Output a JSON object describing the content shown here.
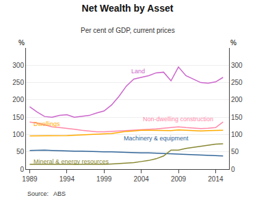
{
  "chart_data": {
    "type": "line",
    "title": "Net Wealth by Asset",
    "subtitle": "Per cent of GDP, current prices",
    "source": "Source:   ABS",
    "ylabel": "%",
    "y2label": "%",
    "x": [
      1989,
      1990,
      1991,
      1992,
      1993,
      1994,
      1995,
      1996,
      1997,
      1998,
      1999,
      2000,
      2001,
      2002,
      2003,
      2004,
      2005,
      2006,
      2007,
      2008,
      2009,
      2010,
      2011,
      2012,
      2013,
      2014,
      2015
    ],
    "series": [
      {
        "name": "Land",
        "color": "#cc66cc",
        "values": [
          180,
          165,
          152,
          150,
          155,
          157,
          150,
          152,
          155,
          162,
          168,
          185,
          210,
          240,
          260,
          265,
          270,
          278,
          280,
          255,
          295,
          270,
          260,
          250,
          248,
          252,
          265
        ]
      },
      {
        "name": "Non-dwelling construction",
        "color": "#ff88aa",
        "values": [
          136,
          133,
          128,
          122,
          120,
          118,
          115,
          112,
          110,
          108,
          108,
          109,
          110,
          112,
          112,
          113,
          115,
          116,
          118,
          120,
          122,
          120,
          118,
          117,
          118,
          120,
          136
        ]
      },
      {
        "name": "Dwellings",
        "color": "#ffaa00",
        "values": [
          96,
          96,
          97,
          97,
          97,
          97,
          98,
          99,
          99,
          100,
          101,
          103,
          106,
          109,
          110,
          112,
          112,
          112,
          112,
          111,
          113,
          112,
          110,
          110,
          111,
          111,
          112
        ]
      },
      {
        "name": "Machinery & equipment",
        "color": "#336699",
        "values": [
          54,
          55,
          55,
          54,
          53,
          53,
          52,
          52,
          51,
          50,
          50,
          50,
          49,
          49,
          48,
          47,
          47,
          46,
          45,
          44,
          43,
          42,
          41,
          40,
          39,
          38,
          38
        ]
      },
      {
        "name": "Mineral & energy resources",
        "color": "#888833",
        "values": [
          14,
          14,
          14,
          13,
          13,
          13,
          13,
          13,
          13,
          13,
          14,
          15,
          16,
          17,
          19,
          22,
          25,
          30,
          38,
          55,
          55,
          60,
          63,
          67,
          70,
          72,
          73
        ]
      }
    ],
    "annotations": [
      {
        "text": "Land",
        "x": 2002.5,
        "y": 268,
        "color": "#cc66cc"
      },
      {
        "text": "Non-dwelling construction",
        "x": 2004.0,
        "y": 131,
        "color": "#ff88aa"
      },
      {
        "text": "Dwellings",
        "x": 1989.3,
        "y": 117,
        "color": "#ffaa00"
      },
      {
        "text": "Machinery & equipment",
        "x": 2001.5,
        "y": 75,
        "color": "#336699"
      },
      {
        "text": "Mineral & energy resources",
        "x": 1989.3,
        "y": 8,
        "color": "#888833"
      }
    ],
    "xlim": [
      1988.5,
      2015.8
    ],
    "xticks": [
      1989,
      1994,
      1999,
      2004,
      2009,
      2014
    ],
    "ylim": [
      0,
      350
    ],
    "yticks": [
      0,
      50,
      100,
      150,
      200,
      250,
      300
    ],
    "y2lim": [
      0,
      350
    ],
    "y2ticks": [
      0,
      50,
      100,
      150,
      200,
      250,
      300
    ],
    "grid": true
  }
}
